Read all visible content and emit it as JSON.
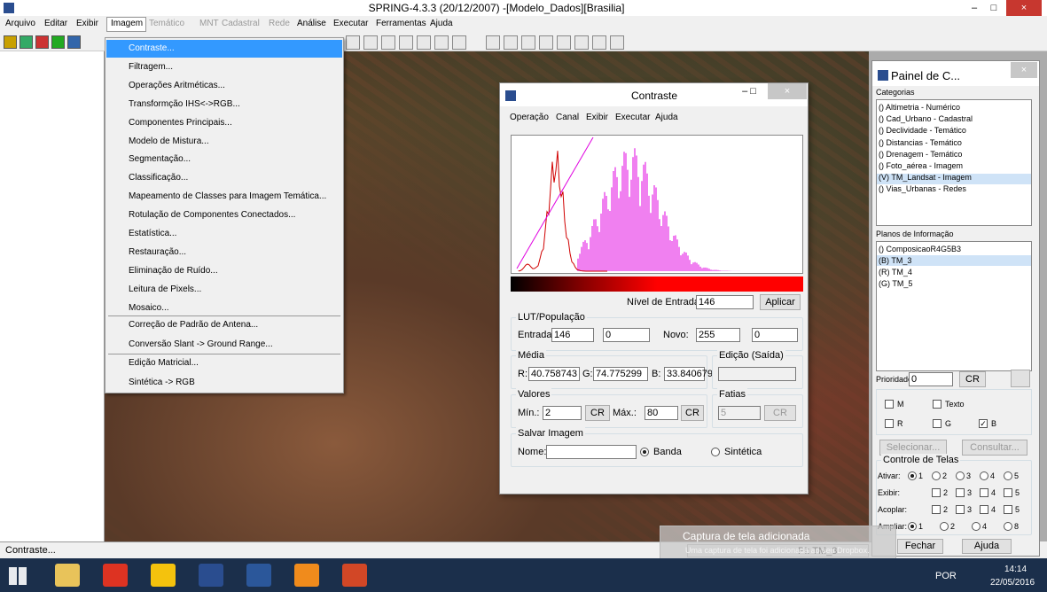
{
  "window": {
    "title": "SPRING-4.3.3 (20/12/2007) -[Modelo_Dados][Brasilia]"
  },
  "menu": [
    "Arquivo",
    "Editar",
    "Exibir",
    "Imagem",
    "Temático",
    "MNT",
    "Cadastral",
    "Rede",
    "Análise",
    "Executar",
    "Ferramentas",
    "Ajuda"
  ],
  "image_menu": {
    "items": [
      "Contraste...",
      "Filtragem...",
      "Operações Aritméticas...",
      "Transformção IHS<->RGB...",
      "Componentes Principais...",
      "Modelo de Mistura...",
      "Segmentação...",
      "Classificação...",
      "Mapeamento de Classes para Imagem Temática...",
      "Rotulação de Componentes Conectados...",
      "Estatística...",
      "Restauração...",
      "Eliminação de Ruído...",
      "Leitura de Pixels...",
      "Mosaico...",
      "Correção de Padrão de Antena...",
      "Conversão Slant -> Ground Range...",
      "Edição Matricial...",
      "Sintética -> RGB"
    ]
  },
  "contraste": {
    "title": "Contraste",
    "menu": [
      "Operação",
      "Canal",
      "Exibir",
      "Executar",
      "Ajuda"
    ],
    "input_level_label": "Nível de Entrada:",
    "input_level": "146",
    "apply": "Aplicar",
    "lut": {
      "title": "LUT/População",
      "entrada_label": "Entrada:",
      "entrada": "146",
      "entrada2": "0",
      "novo_label": "Novo:",
      "novo": "255",
      "novo2": "0"
    },
    "media": {
      "title": "Média",
      "r_label": "R:",
      "r": "40.758743",
      "g_label": "G:",
      "g": "74.775299",
      "b_label": "B:",
      "b": "33.840679"
    },
    "edicao": {
      "title": "Edição (Saída)"
    },
    "valores": {
      "title": "Valores",
      "min_label": "Mín.:",
      "min": "2",
      "cr": "CR",
      "max_label": "Máx.:",
      "max": "80"
    },
    "fatias": {
      "title": "Fatias",
      "value": "5",
      "cr": "CR"
    },
    "salvar": {
      "title": "Salvar Imagem",
      "name_label": "Nome:",
      "banda": "Banda",
      "sintetica": "Sintética"
    }
  },
  "panel": {
    "title": "Painel de C...",
    "categorias_label": "Categorias",
    "categorias": [
      "() Altimetria - Numérico",
      "() Cad_Urbano - Cadastral",
      "() Declividade - Temático",
      "() Distancias - Temático",
      "() Drenagem - Temático",
      "() Foto_aérea - Imagem",
      "(V) TM_Landsat - Imagem",
      "() Vias_Urbanas - Redes"
    ],
    "planos_label": "Planos de Informação",
    "planos": [
      "() ComposicaoR4G5B3",
      "(B) TM_3",
      "(R) TM_4",
      "(G) TM_5"
    ],
    "prioridade_label": "Prioridade:",
    "prioridade": "0",
    "cr": "CR",
    "checks": [
      "M",
      "Texto",
      "R",
      "G",
      "B"
    ],
    "selecionar": "Selecionar...",
    "consultar": "Consultar...",
    "controle_label": "Controle de Telas",
    "ativar_label": "Ativar:",
    "exibir_label": "Exibir:",
    "acoplar_label": "Acoplar:",
    "ampliar_label": "Ampliar:",
    "screens": [
      "1",
      "2",
      "3",
      "4",
      "5"
    ],
    "zoom": [
      "1",
      "2",
      "4",
      "8"
    ],
    "fechar": "Fechar",
    "ajuda": "Ajuda"
  },
  "status": {
    "left": "Contraste...",
    "pi": "PI: TM_3"
  },
  "notification": {
    "title": "Captura de tela adicionada",
    "text": "Uma captura de tela foi adicionada ao seu Dropbox."
  },
  "taskbar": {
    "lang": "POR",
    "time": "14:14",
    "date": "22/05/2016"
  }
}
